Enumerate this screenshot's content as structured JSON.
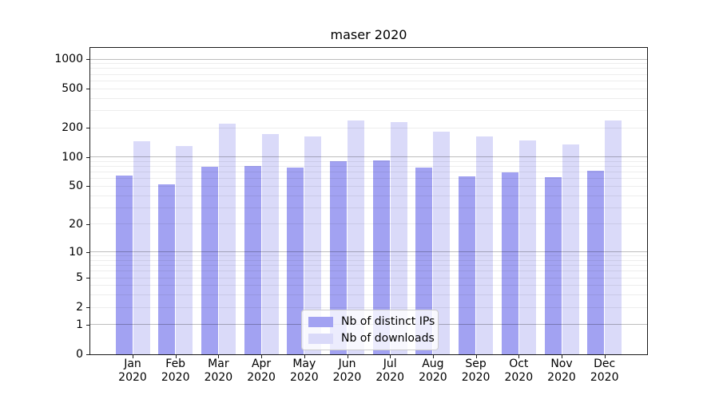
{
  "chart_data": {
    "type": "bar",
    "title": "maser 2020",
    "categories": [
      "Jan 2020",
      "Feb 2020",
      "Mar 2020",
      "Apr 2020",
      "May 2020",
      "Jun 2020",
      "Jul 2020",
      "Aug 2020",
      "Sep 2020",
      "Oct 2020",
      "Nov 2020",
      "Dec 2020"
    ],
    "series": [
      {
        "name": "Nb of distinct IPs",
        "color": "#a2a2f2",
        "values": [
          65,
          52,
          79,
          81,
          78,
          91,
          93,
          78,
          63,
          70,
          62,
          72
        ]
      },
      {
        "name": "Nb of downloads",
        "color": "#dadaf9",
        "values": [
          145,
          130,
          218,
          173,
          164,
          237,
          230,
          183,
          163,
          147,
          134,
          236
        ]
      }
    ],
    "y_scale": "log1p",
    "yticks": [
      0,
      1,
      2,
      5,
      10,
      20,
      50,
      100,
      200,
      500,
      1000
    ],
    "ylim": [
      0,
      1300
    ],
    "xlabel": "",
    "ylabel": "",
    "grid": "horizontal major+minor, drawn over bars",
    "legend_position": "lower center",
    "background_color": "#ffffff",
    "spine_color": "#1a1a1a"
  }
}
